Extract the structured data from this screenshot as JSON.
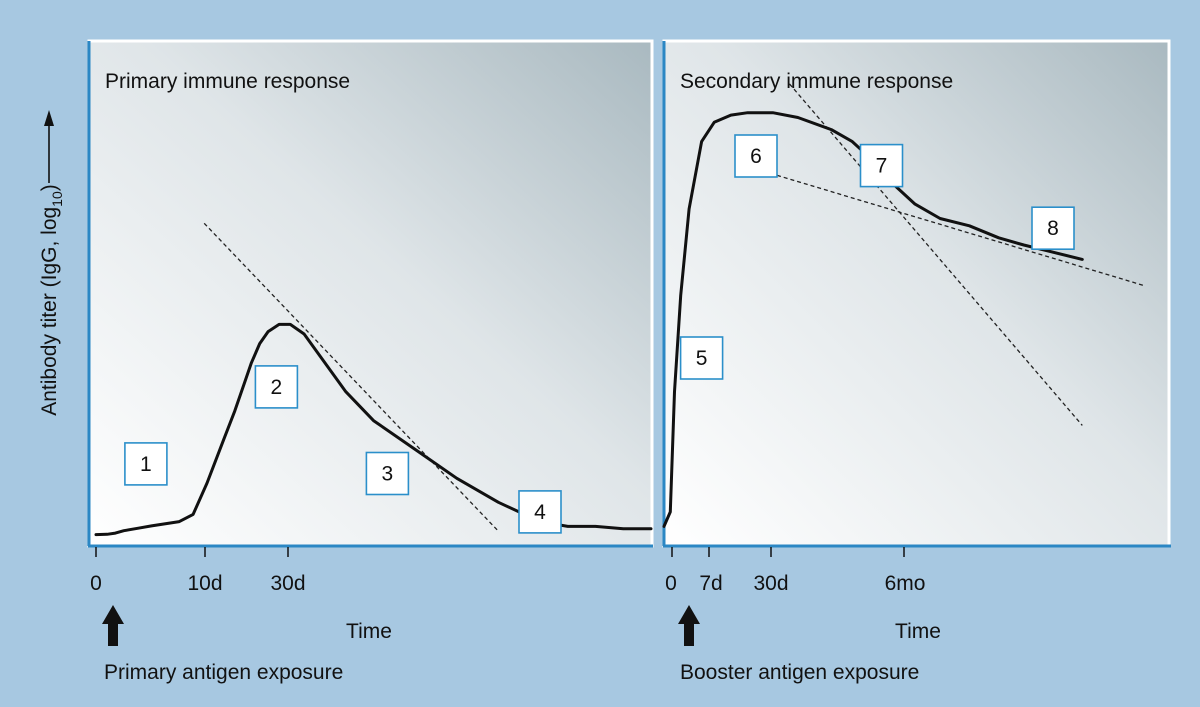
{
  "chart_data": [
    {
      "type": "line",
      "title": "Primary immune response",
      "xlabel": "Time",
      "ylabel": "Antibody titer (IgG, log10)",
      "ylabel_parts": {
        "main": "Antibody titer (IgG, log",
        "sub": "10",
        "close": ")"
      },
      "x_ticks": [
        "0",
        "10d",
        "30d"
      ],
      "exposure_label": "Primary antigen exposure",
      "series": [
        {
          "name": "antibody titer",
          "t": [
            0,
            0.4,
            0.7,
            1.0,
            1.5,
            2.0,
            3.0,
            3.5,
            4.0,
            4.6,
            5.0,
            5.3,
            5.6,
            5.9,
            6.2,
            6.6,
            7.0,
            7.5,
            8.0,
            8.5,
            9.0,
            10.0,
            11.5,
            13.0,
            14.5,
            16.0,
            17.0,
            18.0,
            19.0,
            20.0
          ],
          "level": [
            0.3,
            0.35,
            0.6,
            1.1,
            1.6,
            2.1,
            3.0,
            4.5,
            11.0,
            20.0,
            26.0,
            31.0,
            36.0,
            40.0,
            42.5,
            44.0,
            44.0,
            42.0,
            38.0,
            34.0,
            30.0,
            24.0,
            18.0,
            12.0,
            7.0,
            3.0,
            2.0,
            2.0,
            1.5,
            1.5
          ]
        }
      ],
      "reference_lines": [
        {
          "name": "decline trend",
          "t": [
            3.9,
            14.5
          ],
          "level": [
            65,
            1
          ]
        }
      ],
      "markers": [
        {
          "label": "1",
          "t": 1.8,
          "level": 15
        },
        {
          "label": "2",
          "t": 6.5,
          "level": 31
        },
        {
          "label": "3",
          "t": 10.5,
          "level": 13
        },
        {
          "label": "4",
          "t": 16.0,
          "level": 5
        }
      ]
    },
    {
      "type": "line",
      "title": "Secondary immune response",
      "xlabel": "Time",
      "x_ticks": [
        "0",
        "7d",
        "30d",
        "6mo"
      ],
      "exposure_label": "Booster antigen exposure",
      "series": [
        {
          "name": "antibody titer",
          "t": [
            0,
            0.15,
            0.25,
            0.4,
            0.6,
            0.9,
            1.2,
            1.6,
            2.0,
            2.6,
            3.2,
            4.0,
            4.5,
            5.0,
            5.5,
            6.0,
            6.6,
            7.3,
            8.0,
            8.6,
            9.3,
            10.0
          ],
          "level": [
            2.0,
            5.0,
            30.0,
            50.0,
            68.0,
            82.0,
            86.0,
            87.5,
            88.0,
            88.0,
            87.0,
            84.5,
            82.0,
            78.0,
            73.0,
            69.0,
            66.0,
            64.5,
            62.0,
            60.5,
            59.0,
            57.5
          ]
        }
      ],
      "reference_lines": [
        {
          "name": "fast decline trend",
          "t": [
            3.0,
            10.0
          ],
          "level": [
            94,
            23
          ]
        },
        {
          "name": "slow decline trend",
          "t": [
            2.7,
            11.5
          ],
          "level": [
            75,
            52
          ]
        }
      ],
      "markers": [
        {
          "label": "5",
          "t": 0.9,
          "level": 37
        },
        {
          "label": "6",
          "t": 2.2,
          "level": 79
        },
        {
          "label": "7",
          "t": 5.2,
          "level": 77
        },
        {
          "label": "8",
          "t": 9.3,
          "level": 64
        }
      ]
    }
  ]
}
